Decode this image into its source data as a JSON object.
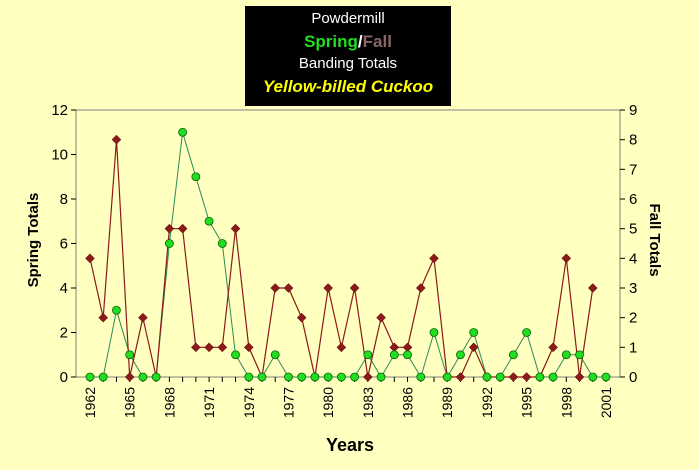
{
  "title": {
    "line1": "Powdermill",
    "spring_word": "Spring",
    "slash": "/",
    "fall_word": "Fall",
    "line3": "Banding Totals",
    "line4": "Yellow-billed Cuckoo"
  },
  "colors": {
    "spring": "#22dd22",
    "fall": "#8b1a1a",
    "fall_title": "#8b6565",
    "plot_bg": "#ffffc0",
    "species": "#ffff00"
  },
  "chart_data": {
    "type": "line",
    "xlabel": "Years",
    "ylabel_left": "Spring Totals",
    "ylabel_right": "Fall Totals",
    "x_ticks": [
      "1962",
      "1965",
      "1968",
      "1971",
      "1974",
      "1977",
      "1980",
      "1983",
      "1986",
      "1989",
      "1992",
      "1995",
      "1998",
      "2001"
    ],
    "y_left_ticks": [
      "0",
      "2",
      "4",
      "6",
      "8",
      "10",
      "12"
    ],
    "y_right_ticks": [
      "0",
      "1",
      "2",
      "3",
      "4",
      "5",
      "6",
      "7",
      "8",
      "9"
    ],
    "ylim_left": [
      0,
      12
    ],
    "ylim_right": [
      0,
      9
    ],
    "xlim": [
      1962,
      2001
    ],
    "grid": false,
    "years": [
      1962,
      1963,
      1964,
      1965,
      1966,
      1967,
      1968,
      1969,
      1970,
      1971,
      1972,
      1973,
      1974,
      1975,
      1976,
      1977,
      1978,
      1979,
      1980,
      1981,
      1982,
      1983,
      1984,
      1985,
      1986,
      1987,
      1988,
      1989,
      1990,
      1991,
      1992,
      1993,
      1994,
      1995,
      1996,
      1997,
      1998,
      1999,
      2000,
      2001
    ],
    "series": [
      {
        "name": "Spring",
        "axis": "left",
        "values": [
          0,
          0,
          3,
          1,
          0,
          0,
          6,
          11,
          9,
          7,
          6,
          1,
          0,
          0,
          1,
          0,
          0,
          0,
          0,
          0,
          0,
          1,
          0,
          1,
          1,
          0,
          2,
          0,
          1,
          2,
          0,
          0,
          1,
          2,
          0,
          0,
          1,
          1,
          0,
          0
        ]
      },
      {
        "name": "Fall",
        "axis": "right",
        "values": [
          4,
          2,
          8,
          0,
          2,
          0,
          5,
          5,
          1,
          1,
          1,
          5,
          1,
          0,
          3,
          3,
          2,
          0,
          3,
          1,
          3,
          0,
          2,
          1,
          1,
          3,
          4,
          0,
          0,
          1,
          0,
          0,
          0,
          0,
          0,
          1,
          4,
          0,
          3,
          null
        ]
      }
    ]
  }
}
